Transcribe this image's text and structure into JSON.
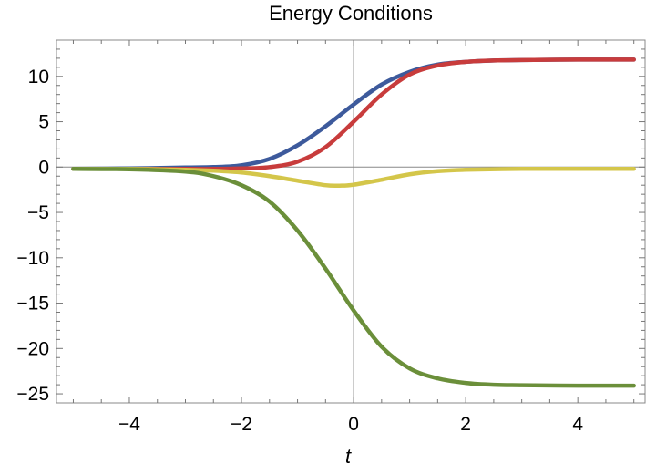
{
  "chart_data": {
    "type": "line",
    "title": "Energy Conditions",
    "xlabel": "t",
    "ylabel": "",
    "xlim": [
      -5.3,
      5.2
    ],
    "ylim": [
      -26,
      14
    ],
    "x_ticks": [
      -4,
      -2,
      0,
      2,
      4
    ],
    "x_tick_labels": [
      "−4",
      "−2",
      "0",
      "2",
      "4"
    ],
    "y_ticks": [
      10,
      5,
      0,
      -5,
      -10,
      -15,
      -20,
      -25
    ],
    "y_tick_labels": [
      "10",
      "5",
      "0",
      "−5",
      "−10",
      "−15",
      "−20",
      "−25"
    ],
    "grid": false,
    "legend": "none",
    "series": [
      {
        "color": "#3d5a9c",
        "x": [
          -5,
          -4,
          -3,
          -2.5,
          -2,
          -1.5,
          -1,
          -0.5,
          0,
          0.5,
          1,
          1.5,
          2,
          2.5,
          3,
          4,
          5
        ],
        "y": [
          -0.2,
          -0.15,
          -0.05,
          0.0,
          0.2,
          0.9,
          2.4,
          4.5,
          6.9,
          9.1,
          10.5,
          11.3,
          11.6,
          11.75,
          11.8,
          11.85,
          11.85
        ]
      },
      {
        "color": "#c83c3c",
        "x": [
          -5,
          -4,
          -3,
          -2.5,
          -2,
          -1.5,
          -1,
          -0.5,
          0,
          0.5,
          1,
          1.5,
          2,
          2.5,
          3,
          4,
          5
        ],
        "y": [
          -0.2,
          -0.2,
          -0.2,
          -0.2,
          -0.15,
          0.0,
          0.6,
          2.2,
          5.0,
          8.0,
          10.2,
          11.2,
          11.6,
          11.75,
          11.8,
          11.85,
          11.85
        ]
      },
      {
        "color": "#d4c64a",
        "x": [
          -5,
          -4,
          -3,
          -2.5,
          -2,
          -1.5,
          -1,
          -0.5,
          -0.25,
          0,
          0.5,
          1,
          1.5,
          2,
          3,
          4,
          5
        ],
        "y": [
          -0.2,
          -0.2,
          -0.3,
          -0.4,
          -0.6,
          -1.0,
          -1.5,
          -2.0,
          -2.05,
          -1.95,
          -1.4,
          -0.8,
          -0.45,
          -0.3,
          -0.2,
          -0.2,
          -0.2
        ]
      },
      {
        "color": "#6b8f3a",
        "x": [
          -5,
          -4,
          -3,
          -2.5,
          -2,
          -1.5,
          -1,
          -0.5,
          0,
          0.5,
          1,
          1.5,
          2,
          2.5,
          3,
          4,
          5
        ],
        "y": [
          -0.2,
          -0.25,
          -0.5,
          -1.0,
          -2.0,
          -3.8,
          -7.0,
          -11.2,
          -15.8,
          -19.8,
          -22.2,
          -23.3,
          -23.8,
          -24.0,
          -24.05,
          -24.1,
          -24.1
        ]
      }
    ]
  }
}
